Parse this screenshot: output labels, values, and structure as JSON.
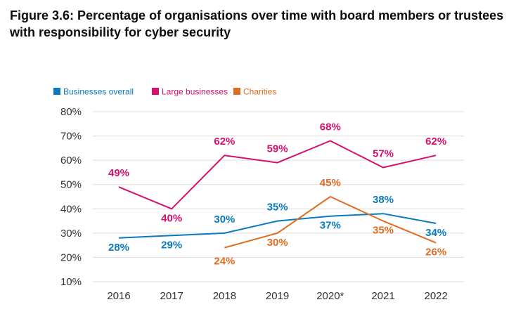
{
  "title": "Figure 3.6: Percentage of organisations over time with board members or trustees with responsibility for cyber security",
  "chart_data": {
    "type": "line",
    "categories": [
      "2016",
      "2017",
      "2018",
      "2019",
      "2020*",
      "2021",
      "2022"
    ],
    "ylim": [
      10,
      80
    ],
    "yticks": [
      "80%",
      "70%",
      "60%",
      "50%",
      "40%",
      "30%",
      "20%",
      "10%"
    ],
    "grid": true,
    "legend_position": "top-left",
    "series": [
      {
        "name": "Businesses overall",
        "color": "#0a7abf",
        "values": [
          28,
          29,
          30,
          35,
          37,
          38,
          34
        ],
        "labels": [
          "28%",
          "29%",
          "30%",
          "35%",
          "37%",
          "38%",
          "34%"
        ]
      },
      {
        "name": "Large businesses",
        "color": "#d5106e",
        "values": [
          49,
          40,
          62,
          59,
          68,
          57,
          62
        ],
        "labels": [
          "49%",
          "40%",
          "62%",
          "59%",
          "68%",
          "57%",
          "62%"
        ]
      },
      {
        "name": "Charities",
        "color": "#e06c1f",
        "values": [
          null,
          null,
          24,
          30,
          45,
          35,
          26
        ],
        "labels": [
          null,
          null,
          "24%",
          "30%",
          "45%",
          "35%",
          "26%"
        ]
      }
    ]
  }
}
